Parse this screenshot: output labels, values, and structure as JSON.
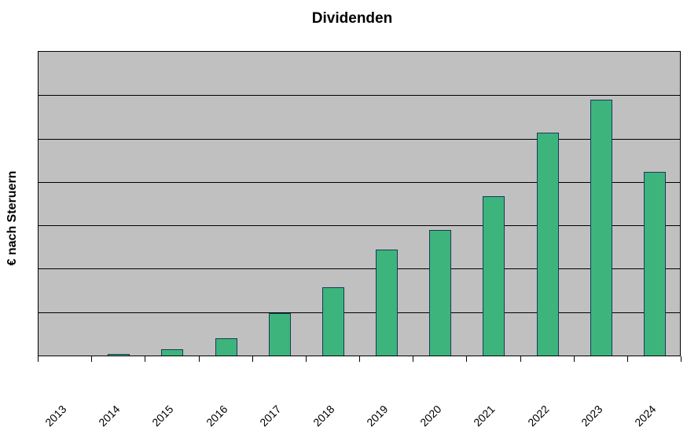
{
  "chart_data": {
    "type": "bar",
    "title": "Dividenden",
    "xlabel": "",
    "ylabel": "€ nach Steruern",
    "categories": [
      "2013",
      "2014",
      "2015",
      "2016",
      "2017",
      "2018",
      "2019",
      "2020",
      "2021",
      "2022",
      "2023",
      "2024"
    ],
    "values": [
      0,
      0.03,
      0.14,
      0.4,
      0.97,
      1.57,
      2.45,
      2.9,
      3.68,
      5.14,
      5.9,
      4.24
    ],
    "ylim": [
      0,
      7
    ],
    "gridline_interval": 1,
    "grid": "horizontal",
    "legend": "none",
    "y_axis_note": "no numeric tick labels visible; values are in gridline units",
    "x_tick_label_rotation_deg": 45
  },
  "colors": {
    "page_bg": "#ffffff",
    "plot_bg": "#c0c0c0",
    "gridline": "#000000",
    "axis": "#000000",
    "text": "#000000",
    "bar_fill": "#3eb47d",
    "bar_border": "#17395c"
  }
}
